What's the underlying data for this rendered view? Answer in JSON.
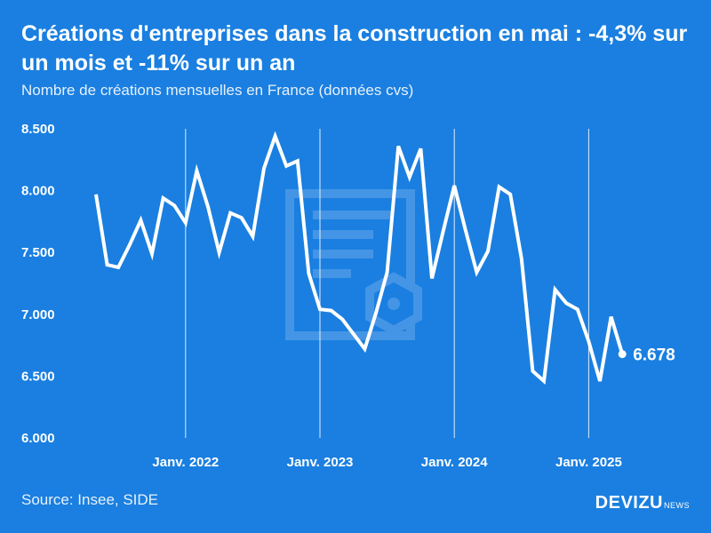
{
  "title": "Créations d'entreprises dans la construction en mai : -4,3% sur un mois et -11% sur un an",
  "subtitle": "Nombre de créations mensuelles en France (données cvs)",
  "source": "Source: Insee, SIDE",
  "brand": {
    "main": "DEVIZU",
    "sub": "NEWS"
  },
  "colors": {
    "background": "#1a7fe0",
    "line": "#ffffff",
    "watermark": "#4d9ae8"
  },
  "chart_data": {
    "type": "line",
    "title": "Créations d'entreprises dans la construction en mai : -4,3% sur un mois et -11% sur un an",
    "ylim": [
      6000,
      8500
    ],
    "yticks": [
      {
        "value": 6000,
        "label": "6.000"
      },
      {
        "value": 6500,
        "label": "6.500"
      },
      {
        "value": 7000,
        "label": "7.000"
      },
      {
        "value": 7500,
        "label": "7.500"
      },
      {
        "value": 8000,
        "label": "8.000"
      },
      {
        "value": 8500,
        "label": "8.500"
      }
    ],
    "xticks": [
      {
        "label": "Janv. 2022",
        "index": 8
      },
      {
        "label": "Janv. 2023",
        "index": 20
      },
      {
        "label": "Janv. 2024",
        "index": 32
      },
      {
        "label": "Janv. 2025",
        "index": 44
      }
    ],
    "grid": "vertical-at-year-start",
    "last_label": "6.678",
    "series": [
      {
        "values": [
          7970,
          7400,
          7380,
          7560,
          7760,
          7490,
          7940,
          7880,
          7740,
          8160,
          7870,
          7500,
          7820,
          7780,
          7630,
          8180,
          8440,
          8200,
          8240,
          7330,
          7040,
          7030,
          6960,
          6840,
          6720,
          7010,
          7340,
          8360,
          8110,
          8340,
          7290,
          7670,
          8040,
          7680,
          7340,
          7510,
          8030,
          7970,
          7450,
          6540,
          6460,
          7200,
          7090,
          7040,
          6780,
          6460,
          6980,
          6678
        ]
      }
    ]
  }
}
